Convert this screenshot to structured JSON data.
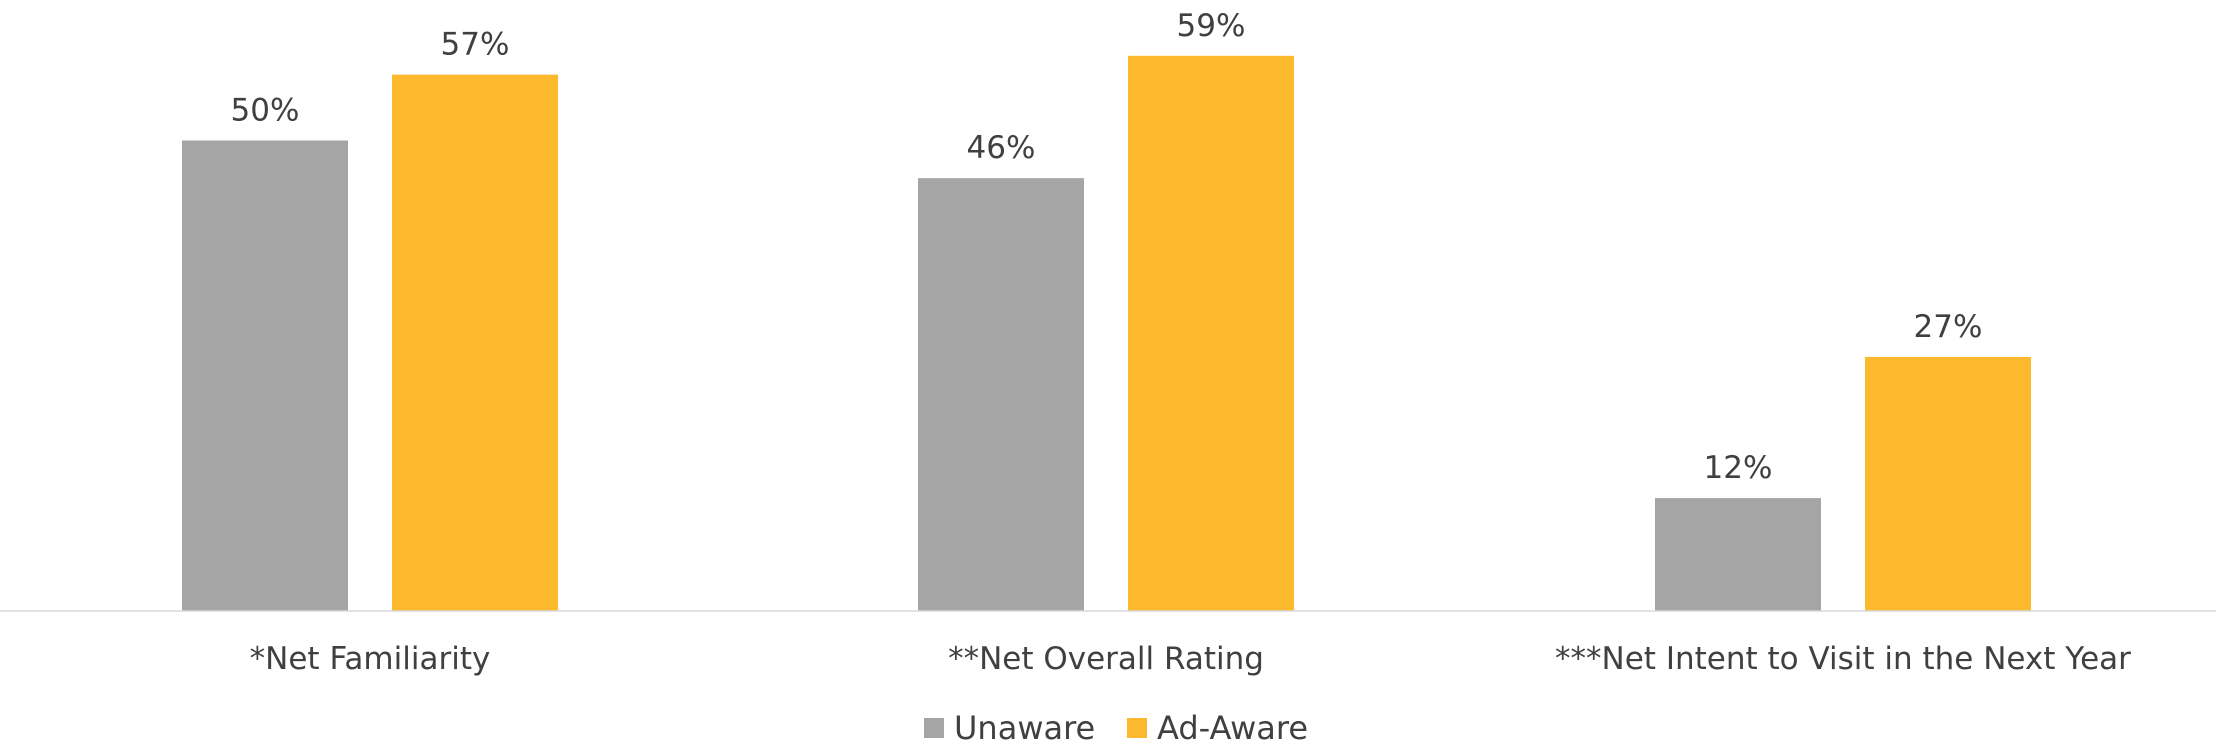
{
  "chart_data": {
    "type": "bar",
    "categories": [
      "*Net Familiarity",
      "**Net Overall Rating",
      "***Net Intent to Visit in the Next Year"
    ],
    "series": [
      {
        "name": "Unaware",
        "values": [
          50,
          46,
          12
        ],
        "labels": [
          "50%",
          "46%",
          "12%"
        ],
        "color": "#a5a5a5"
      },
      {
        "name": "Ad-Aware",
        "values": [
          57,
          59,
          27
        ],
        "labels": [
          "57%",
          "59%",
          "27%"
        ],
        "color": "#fdb92e"
      }
    ],
    "ylim": [
      0,
      65
    ],
    "grid": false,
    "legend_position": "bottom-center",
    "axis_color": "#d9d9d9"
  }
}
